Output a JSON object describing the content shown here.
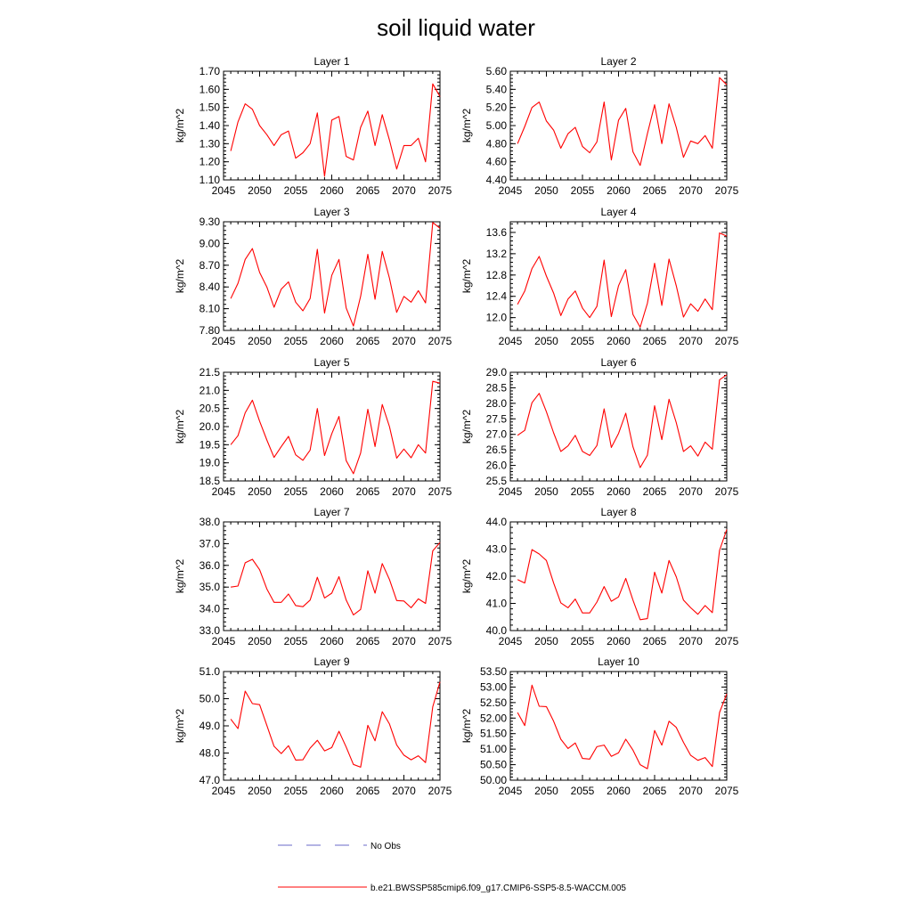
{
  "title": "soil liquid water",
  "colors": {
    "series": "#ff0000",
    "no_obs": "#6a6ac8",
    "axis": "#000000"
  },
  "legend": {
    "no_obs_label": "No Obs",
    "model_label": "b.e21.BWSSP585cmip6.f09_g17.CMIP6-SSP5-8.5-WACCM.005"
  },
  "chart_data": [
    {
      "type": "line",
      "title": "Layer 1",
      "ylabel": "kg/m^2",
      "xlim": [
        2045,
        2075
      ],
      "ylim": [
        1.1,
        1.7
      ],
      "xticks": [
        "2045",
        "2050",
        "2055",
        "2060",
        "2065",
        "2070",
        "2075"
      ],
      "yticks": [
        "1.10",
        "1.20",
        "1.30",
        "1.40",
        "1.50",
        "1.60",
        "1.70"
      ],
      "x": [
        2046,
        2047,
        2048,
        2049,
        2050,
        2051,
        2052,
        2053,
        2054,
        2055,
        2056,
        2057,
        2058,
        2059,
        2060,
        2061,
        2062,
        2063,
        2064,
        2065,
        2066,
        2067,
        2068,
        2069,
        2070,
        2071,
        2072,
        2073,
        2074,
        2075
      ],
      "series": [
        {
          "values": [
            1.26,
            1.42,
            1.52,
            1.49,
            1.4,
            1.35,
            1.29,
            1.35,
            1.37,
            1.22,
            1.25,
            1.3,
            1.47,
            1.12,
            1.43,
            1.45,
            1.23,
            1.21,
            1.39,
            1.48,
            1.29,
            1.46,
            1.32,
            1.16,
            1.29,
            1.29,
            1.33,
            1.2,
            1.63,
            1.56
          ]
        }
      ]
    },
    {
      "type": "line",
      "title": "Layer 2",
      "ylabel": "kg/m^2",
      "xlim": [
        2045,
        2075
      ],
      "ylim": [
        4.4,
        5.6
      ],
      "xticks": [
        "2045",
        "2050",
        "2055",
        "2060",
        "2065",
        "2070",
        "2075"
      ],
      "yticks": [
        "4.40",
        "4.60",
        "4.80",
        "5.00",
        "5.20",
        "5.40",
        "5.60"
      ],
      "x": [
        2046,
        2047,
        2048,
        2049,
        2050,
        2051,
        2052,
        2053,
        2054,
        2055,
        2056,
        2057,
        2058,
        2059,
        2060,
        2061,
        2062,
        2063,
        2064,
        2065,
        2066,
        2067,
        2068,
        2069,
        2070,
        2071,
        2072,
        2073,
        2074,
        2075
      ],
      "series": [
        {
          "values": [
            4.8,
            4.99,
            5.2,
            5.26,
            5.05,
            4.95,
            4.75,
            4.91,
            4.98,
            4.77,
            4.7,
            4.82,
            5.26,
            4.62,
            5.06,
            5.19,
            4.71,
            4.56,
            4.91,
            5.23,
            4.8,
            5.24,
            4.98,
            4.65,
            4.83,
            4.8,
            4.89,
            4.75,
            5.53,
            5.45
          ]
        }
      ]
    },
    {
      "type": "line",
      "title": "Layer 3",
      "ylabel": "kg/m^2",
      "xlim": [
        2045,
        2075
      ],
      "ylim": [
        7.8,
        9.3
      ],
      "xticks": [
        "2045",
        "2050",
        "2055",
        "2060",
        "2065",
        "2070",
        "2075"
      ],
      "yticks": [
        "7.80",
        "8.10",
        "8.40",
        "8.70",
        "9.00",
        "9.30"
      ],
      "x": [
        2046,
        2047,
        2048,
        2049,
        2050,
        2051,
        2052,
        2053,
        2054,
        2055,
        2056,
        2057,
        2058,
        2059,
        2060,
        2061,
        2062,
        2063,
        2064,
        2065,
        2066,
        2067,
        2068,
        2069,
        2070,
        2071,
        2072,
        2073,
        2074,
        2075
      ],
      "series": [
        {
          "values": [
            8.24,
            8.45,
            8.78,
            8.93,
            8.6,
            8.4,
            8.12,
            8.37,
            8.47,
            8.19,
            8.07,
            8.24,
            8.92,
            8.04,
            8.56,
            8.78,
            8.11,
            7.86,
            8.27,
            8.85,
            8.23,
            8.89,
            8.52,
            8.05,
            8.27,
            8.19,
            8.35,
            8.18,
            9.29,
            9.21
          ]
        }
      ]
    },
    {
      "type": "line",
      "title": "Layer 4",
      "ylabel": "kg/m^2",
      "xlim": [
        2045,
        2075
      ],
      "ylim": [
        11.76,
        13.8
      ],
      "xticks": [
        "2045",
        "2050",
        "2055",
        "2060",
        "2065",
        "2070",
        "2075"
      ],
      "yticks": [
        "12.0",
        "12.4",
        "12.8",
        "13.2",
        "13.6"
      ],
      "x": [
        2046,
        2047,
        2048,
        2049,
        2050,
        2051,
        2052,
        2053,
        2054,
        2055,
        2056,
        2057,
        2058,
        2059,
        2060,
        2061,
        2062,
        2063,
        2064,
        2065,
        2066,
        2067,
        2068,
        2069,
        2070,
        2071,
        2072,
        2073,
        2074,
        2075
      ],
      "series": [
        {
          "values": [
            12.25,
            12.5,
            12.92,
            13.15,
            12.78,
            12.46,
            12.04,
            12.35,
            12.5,
            12.18,
            12.0,
            12.21,
            13.08,
            12.02,
            12.6,
            12.9,
            12.06,
            11.82,
            12.27,
            13.02,
            12.23,
            13.1,
            12.6,
            12.01,
            12.26,
            12.12,
            12.35,
            12.15,
            13.59,
            13.53
          ]
        }
      ]
    },
    {
      "type": "line",
      "title": "Layer 5",
      "ylabel": "kg/m^2",
      "xlim": [
        2045,
        2075
      ],
      "ylim": [
        18.5,
        21.5
      ],
      "xticks": [
        "2045",
        "2050",
        "2055",
        "2060",
        "2065",
        "2070",
        "2075"
      ],
      "yticks": [
        "18.5",
        "19.0",
        "19.5",
        "20.0",
        "20.5",
        "21.0",
        "21.5"
      ],
      "x": [
        2046,
        2047,
        2048,
        2049,
        2050,
        2051,
        2052,
        2053,
        2054,
        2055,
        2056,
        2057,
        2058,
        2059,
        2060,
        2061,
        2062,
        2063,
        2064,
        2065,
        2066,
        2067,
        2068,
        2069,
        2070,
        2071,
        2072,
        2073,
        2074,
        2075
      ],
      "series": [
        {
          "values": [
            19.5,
            19.75,
            20.38,
            20.73,
            20.15,
            19.63,
            19.15,
            19.45,
            19.73,
            19.22,
            19.07,
            19.35,
            20.5,
            19.2,
            19.8,
            20.28,
            19.06,
            18.7,
            19.27,
            20.48,
            19.45,
            20.61,
            20.0,
            19.13,
            19.38,
            19.14,
            19.5,
            19.27,
            21.25,
            21.2
          ]
        }
      ]
    },
    {
      "type": "line",
      "title": "Layer 6",
      "ylabel": "kg/m^2",
      "xlim": [
        2045,
        2075
      ],
      "ylim": [
        25.5,
        29.0
      ],
      "xticks": [
        "2045",
        "2050",
        "2055",
        "2060",
        "2065",
        "2070",
        "2075"
      ],
      "yticks": [
        "25.5",
        "26.0",
        "26.5",
        "27.0",
        "27.5",
        "28.0",
        "28.5",
        "29.0"
      ],
      "x": [
        2046,
        2047,
        2048,
        2049,
        2050,
        2051,
        2052,
        2053,
        2054,
        2055,
        2056,
        2057,
        2058,
        2059,
        2060,
        2061,
        2062,
        2063,
        2064,
        2065,
        2066,
        2067,
        2068,
        2069,
        2070,
        2071,
        2072,
        2073,
        2074,
        2075
      ],
      "series": [
        {
          "values": [
            26.97,
            27.13,
            28.02,
            28.32,
            27.73,
            27.05,
            26.45,
            26.63,
            26.97,
            26.45,
            26.32,
            26.64,
            27.82,
            26.58,
            27.03,
            27.68,
            26.6,
            25.93,
            26.33,
            27.92,
            26.83,
            28.13,
            27.38,
            26.45,
            26.63,
            26.3,
            26.75,
            26.52,
            28.76,
            28.92
          ]
        }
      ]
    },
    {
      "type": "line",
      "title": "Layer 7",
      "ylabel": "kg/m^2",
      "xlim": [
        2045,
        2075
      ],
      "ylim": [
        33.0,
        38.0
      ],
      "xticks": [
        "2045",
        "2050",
        "2055",
        "2060",
        "2065",
        "2070",
        "2075"
      ],
      "yticks": [
        "33.0",
        "34.0",
        "35.0",
        "36.0",
        "37.0",
        "38.0"
      ],
      "x": [
        2046,
        2047,
        2048,
        2049,
        2050,
        2051,
        2052,
        2053,
        2054,
        2055,
        2056,
        2057,
        2058,
        2059,
        2060,
        2061,
        2062,
        2063,
        2064,
        2065,
        2066,
        2067,
        2068,
        2069,
        2070,
        2071,
        2072,
        2073,
        2074,
        2075
      ],
      "series": [
        {
          "values": [
            35.0,
            35.05,
            36.12,
            36.28,
            35.8,
            34.92,
            34.3,
            34.3,
            34.68,
            34.15,
            34.1,
            34.4,
            35.45,
            34.5,
            34.72,
            35.48,
            34.4,
            33.72,
            33.97,
            35.75,
            34.72,
            36.08,
            35.35,
            34.38,
            34.36,
            34.05,
            34.46,
            34.25,
            36.67,
            37.05
          ]
        }
      ]
    },
    {
      "type": "line",
      "title": "Layer 8",
      "ylabel": "kg/m^2",
      "xlim": [
        2045,
        2075
      ],
      "ylim": [
        40.0,
        44.0
      ],
      "xticks": [
        "2045",
        "2050",
        "2055",
        "2060",
        "2065",
        "2070",
        "2075"
      ],
      "yticks": [
        "40.0",
        "41.0",
        "42.0",
        "43.0",
        "44.0"
      ],
      "x": [
        2046,
        2047,
        2048,
        2049,
        2050,
        2051,
        2052,
        2053,
        2054,
        2055,
        2056,
        2057,
        2058,
        2059,
        2060,
        2061,
        2062,
        2063,
        2064,
        2065,
        2066,
        2067,
        2068,
        2069,
        2070,
        2071,
        2072,
        2073,
        2074,
        2075
      ],
      "series": [
        {
          "values": [
            41.88,
            41.75,
            42.98,
            42.82,
            42.58,
            41.75,
            41.02,
            40.84,
            41.16,
            40.65,
            40.65,
            41.05,
            41.62,
            41.08,
            41.24,
            41.92,
            41.12,
            40.4,
            40.44,
            42.15,
            41.38,
            42.58,
            41.98,
            41.12,
            40.84,
            40.6,
            40.92,
            40.66,
            42.95,
            43.72
          ]
        }
      ]
    },
    {
      "type": "line",
      "title": "Layer 9",
      "ylabel": "kg/m^2",
      "xlim": [
        2045,
        2075
      ],
      "ylim": [
        47.0,
        51.0
      ],
      "xticks": [
        "2045",
        "2050",
        "2055",
        "2060",
        "2065",
        "2070",
        "2075"
      ],
      "yticks": [
        "47.0",
        "48.0",
        "49.0",
        "50.0",
        "51.0"
      ],
      "x": [
        2046,
        2047,
        2048,
        2049,
        2050,
        2051,
        2052,
        2053,
        2054,
        2055,
        2056,
        2057,
        2058,
        2059,
        2060,
        2061,
        2062,
        2063,
        2064,
        2065,
        2066,
        2067,
        2068,
        2069,
        2070,
        2071,
        2072,
        2073,
        2074,
        2075
      ],
      "series": [
        {
          "values": [
            49.25,
            48.9,
            50.28,
            49.82,
            49.78,
            49.02,
            48.25,
            47.98,
            48.27,
            47.74,
            47.75,
            48.18,
            48.47,
            48.08,
            48.2,
            48.8,
            48.22,
            47.58,
            47.48,
            49.02,
            48.45,
            49.52,
            49.07,
            48.3,
            47.92,
            47.75,
            47.9,
            47.65,
            49.7,
            50.62
          ]
        }
      ]
    },
    {
      "type": "line",
      "title": "Layer 10",
      "ylabel": "kg/m^2",
      "xlim": [
        2045,
        2075
      ],
      "ylim": [
        50.0,
        53.5
      ],
      "xticks": [
        "2045",
        "2050",
        "2055",
        "2060",
        "2065",
        "2070",
        "2075"
      ],
      "yticks": [
        "50.00",
        "50.50",
        "51.00",
        "51.50",
        "52.00",
        "52.50",
        "53.00",
        "53.50"
      ],
      "x": [
        2046,
        2047,
        2048,
        2049,
        2050,
        2051,
        2052,
        2053,
        2054,
        2055,
        2056,
        2057,
        2058,
        2059,
        2060,
        2061,
        2062,
        2063,
        2064,
        2065,
        2066,
        2067,
        2068,
        2069,
        2070,
        2071,
        2072,
        2073,
        2074,
        2075
      ],
      "series": [
        {
          "values": [
            52.18,
            51.76,
            53.06,
            52.38,
            52.37,
            51.9,
            51.32,
            51.02,
            51.2,
            50.7,
            50.68,
            51.08,
            51.13,
            50.77,
            50.88,
            51.32,
            50.97,
            50.5,
            50.37,
            51.6,
            51.13,
            51.9,
            51.7,
            51.22,
            50.8,
            50.64,
            50.73,
            50.44,
            52.18,
            52.78
          ]
        }
      ]
    }
  ]
}
